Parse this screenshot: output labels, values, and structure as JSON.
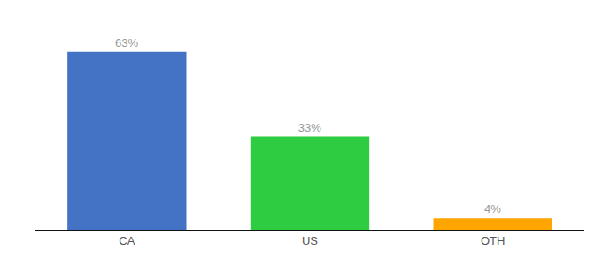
{
  "chart_data": {
    "type": "bar",
    "categories": [
      "CA",
      "US",
      "OTH"
    ],
    "values": [
      63,
      33,
      4
    ],
    "value_labels": [
      "63%",
      "33%",
      "4%"
    ],
    "data_labels": true,
    "colors": [
      "#4472C4",
      "#2ECC40",
      "#FFA500"
    ],
    "ylim": [
      0,
      72
    ],
    "tick_labels": "x",
    "grid": false
  }
}
